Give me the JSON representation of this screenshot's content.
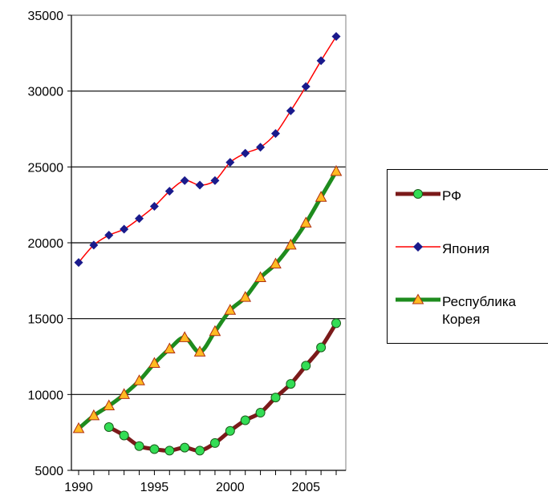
{
  "chart_data": {
    "type": "line",
    "title": "",
    "xlabel": "",
    "ylabel": "",
    "xlim": [
      1990,
      2007
    ],
    "ylim": [
      5000,
      35000
    ],
    "x_ticks": [
      1990,
      1995,
      2000,
      2005
    ],
    "x_tick_labels": [
      "1990",
      "1995",
      "2000",
      "2005"
    ],
    "y_ticks": [
      5000,
      10000,
      15000,
      20000,
      25000,
      30000,
      35000
    ],
    "y_tick_labels": [
      "5000",
      "10000",
      "15000",
      "20000",
      "25000",
      "30000",
      "35000"
    ],
    "grid": "horizontal",
    "legend_position": "right",
    "series": [
      {
        "name": "РФ",
        "color": "#7b1a1a",
        "marker": "circle",
        "marker_color": "#33dd55",
        "x": [
          1992,
          1993,
          1994,
          1995,
          1996,
          1997,
          1998,
          1999,
          2000,
          2001,
          2002,
          2003,
          2004,
          2005,
          2006,
          2007
        ],
        "values": [
          7850,
          7300,
          6600,
          6400,
          6300,
          6500,
          6300,
          6800,
          7600,
          8300,
          8800,
          9800,
          10700,
          11900,
          13100,
          14700
        ]
      },
      {
        "name": "Япония",
        "color": "#ff0000",
        "marker": "diamond",
        "marker_color": "#1a1a8c",
        "x": [
          1990,
          1991,
          1992,
          1993,
          1994,
          1995,
          1996,
          1997,
          1998,
          1999,
          2000,
          2001,
          2002,
          2003,
          2004,
          2005,
          2006,
          2007
        ],
        "values": [
          18700,
          19850,
          20500,
          20900,
          21600,
          22400,
          23400,
          24100,
          23800,
          24100,
          25300,
          25900,
          26300,
          27200,
          28700,
          30300,
          32000,
          33600
        ]
      },
      {
        "name": "Республика Корея",
        "color": "#1e8c1e",
        "marker": "triangle",
        "marker_color": "#ffbb22",
        "x": [
          1990,
          1991,
          1992,
          1993,
          1994,
          1995,
          1996,
          1997,
          1998,
          1999,
          2000,
          2001,
          2002,
          2003,
          2004,
          2005,
          2006,
          2007
        ],
        "values": [
          7750,
          8600,
          9250,
          10000,
          10900,
          12050,
          13000,
          13750,
          12800,
          14150,
          15550,
          16400,
          17700,
          18600,
          19850,
          21300,
          23000,
          24700
        ]
      }
    ]
  }
}
